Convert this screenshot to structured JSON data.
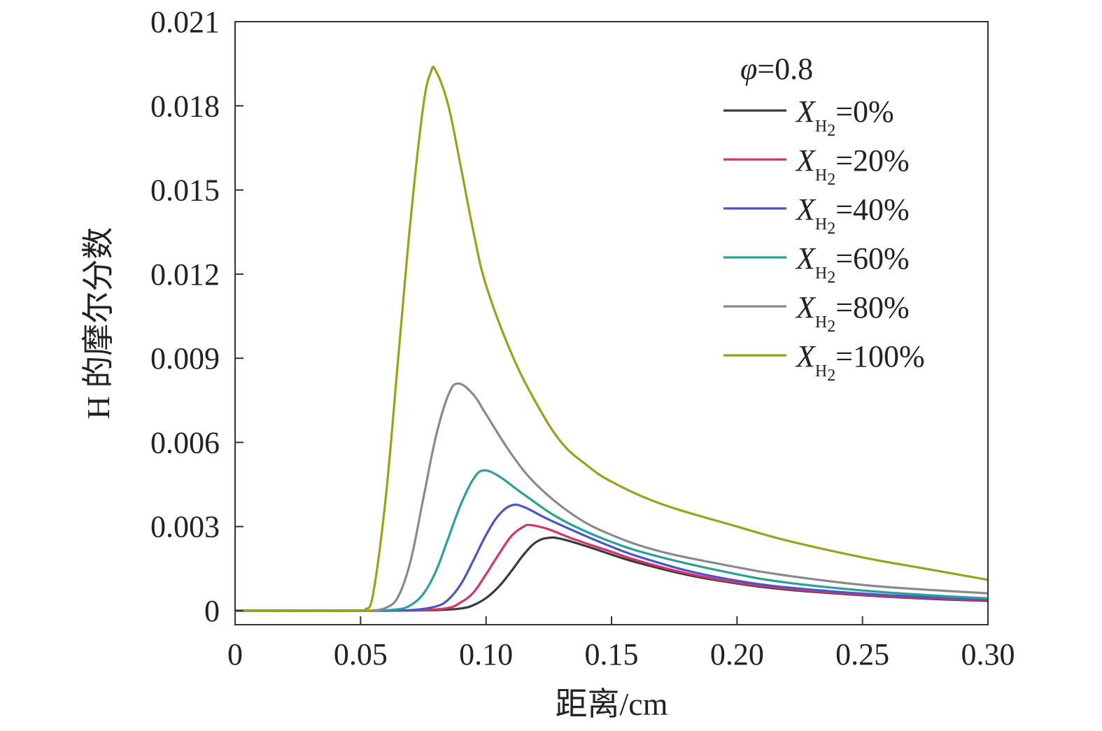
{
  "chart_data": {
    "type": "line",
    "title": "",
    "xlabel": "距离/cm",
    "ylabel": "H 的摩尔分数",
    "xlim": [
      0,
      0.3
    ],
    "ylim": [
      0,
      0.021
    ],
    "x_ticks": [
      "0",
      "0.05",
      "0.10",
      "0.15",
      "0.20",
      "0.25",
      "0.30"
    ],
    "y_ticks": [
      "0",
      "0.003",
      "0.006",
      "0.009",
      "0.012",
      "0.015",
      "0.018",
      "0.021"
    ],
    "grid": false,
    "legend_position": "top-right",
    "legend_header": {
      "symbol": "φ",
      "text": "=0.8"
    },
    "series": [
      {
        "name": "X_H2=0%",
        "label_var": "X",
        "label_sub": "H",
        "label_sub2": "2",
        "label_rest": "=0%",
        "color": "#3a3a3a",
        "points": [
          [
            0,
            0
          ],
          [
            0.05,
            0
          ],
          [
            0.06,
            0
          ],
          [
            0.08,
            2e-05
          ],
          [
            0.09,
            8e-05
          ],
          [
            0.095,
            0.0002
          ],
          [
            0.1,
            0.00045
          ],
          [
            0.105,
            0.00085
          ],
          [
            0.11,
            0.0014
          ],
          [
            0.115,
            0.002
          ],
          [
            0.12,
            0.00245
          ],
          [
            0.125,
            0.0026
          ],
          [
            0.13,
            0.00256
          ],
          [
            0.14,
            0.0023
          ],
          [
            0.15,
            0.002
          ],
          [
            0.16,
            0.00172
          ],
          [
            0.18,
            0.00128
          ],
          [
            0.2,
            0.00097
          ],
          [
            0.22,
            0.00075
          ],
          [
            0.25,
            0.00055
          ],
          [
            0.275,
            0.00043
          ],
          [
            0.3,
            0.00035
          ]
        ]
      },
      {
        "name": "X_H2=20%",
        "label_var": "X",
        "label_sub": "H",
        "label_sub2": "2",
        "label_rest": "=20%",
        "color": "#d6336c",
        "points": [
          [
            0,
            0
          ],
          [
            0.05,
            0
          ],
          [
            0.06,
            0
          ],
          [
            0.075,
            2e-05
          ],
          [
            0.085,
            0.0001
          ],
          [
            0.09,
            0.0003
          ],
          [
            0.095,
            0.00065
          ],
          [
            0.1,
            0.0013
          ],
          [
            0.105,
            0.002
          ],
          [
            0.11,
            0.00265
          ],
          [
            0.115,
            0.003
          ],
          [
            0.118,
            0.00305
          ],
          [
            0.125,
            0.0029
          ],
          [
            0.135,
            0.00255
          ],
          [
            0.15,
            0.0021
          ],
          [
            0.16,
            0.0018
          ],
          [
            0.18,
            0.00133
          ],
          [
            0.2,
            0.001
          ],
          [
            0.22,
            0.00078
          ],
          [
            0.25,
            0.00057
          ],
          [
            0.275,
            0.00045
          ],
          [
            0.3,
            0.00037
          ]
        ]
      },
      {
        "name": "X_H2=40%",
        "label_var": "X",
        "label_sub": "H",
        "label_sub2": "2",
        "label_rest": "=40%",
        "color": "#4a55c8",
        "points": [
          [
            0,
            0
          ],
          [
            0.05,
            0
          ],
          [
            0.058,
            0
          ],
          [
            0.07,
            2e-05
          ],
          [
            0.08,
            0.00015
          ],
          [
            0.085,
            0.0004
          ],
          [
            0.09,
            0.00095
          ],
          [
            0.095,
            0.0018
          ],
          [
            0.1,
            0.0027
          ],
          [
            0.105,
            0.0034
          ],
          [
            0.11,
            0.00375
          ],
          [
            0.115,
            0.0037
          ],
          [
            0.125,
            0.00325
          ],
          [
            0.14,
            0.00265
          ],
          [
            0.15,
            0.00228
          ],
          [
            0.16,
            0.00195
          ],
          [
            0.18,
            0.00143
          ],
          [
            0.2,
            0.00107
          ],
          [
            0.22,
            0.00083
          ],
          [
            0.25,
            0.00061
          ],
          [
            0.275,
            0.00049
          ],
          [
            0.3,
            0.0004
          ]
        ]
      },
      {
        "name": "X_H2=60%",
        "label_var": "X",
        "label_sub": "H",
        "label_sub2": "2",
        "label_rest": "=60%",
        "color": "#2aa198",
        "points": [
          [
            0,
            0
          ],
          [
            0.05,
            0
          ],
          [
            0.056,
            0
          ],
          [
            0.065,
            5e-05
          ],
          [
            0.07,
            0.0002
          ],
          [
            0.075,
            0.0006
          ],
          [
            0.08,
            0.0014
          ],
          [
            0.085,
            0.0026
          ],
          [
            0.09,
            0.0038
          ],
          [
            0.095,
            0.0047
          ],
          [
            0.099,
            0.005
          ],
          [
            0.105,
            0.0048
          ],
          [
            0.115,
            0.00415
          ],
          [
            0.13,
            0.00325
          ],
          [
            0.15,
            0.00245
          ],
          [
            0.17,
            0.0019
          ],
          [
            0.2,
            0.0013
          ],
          [
            0.22,
            0.001
          ],
          [
            0.25,
            0.00072
          ],
          [
            0.275,
            0.00056
          ],
          [
            0.3,
            0.00044
          ]
        ]
      },
      {
        "name": "X_H2=80%",
        "label_var": "X",
        "label_sub": "H",
        "label_sub2": "2",
        "label_rest": "=80%",
        "color": "#8a8a8a",
        "points": [
          [
            0,
            0
          ],
          [
            0.05,
            0
          ],
          [
            0.054,
            0
          ],
          [
            0.06,
            0.0001
          ],
          [
            0.065,
            0.0005
          ],
          [
            0.07,
            0.0018
          ],
          [
            0.075,
            0.004
          ],
          [
            0.08,
            0.0062
          ],
          [
            0.085,
            0.0077
          ],
          [
            0.089,
            0.0081
          ],
          [
            0.095,
            0.0077
          ],
          [
            0.1,
            0.007
          ],
          [
            0.11,
            0.0056
          ],
          [
            0.12,
            0.0045
          ],
          [
            0.135,
            0.0034
          ],
          [
            0.15,
            0.0027
          ],
          [
            0.17,
            0.0021
          ],
          [
            0.2,
            0.00155
          ],
          [
            0.22,
            0.00125
          ],
          [
            0.25,
            0.00092
          ],
          [
            0.275,
            0.00075
          ],
          [
            0.3,
            0.00062
          ]
        ]
      },
      {
        "name": "X_H2=100%",
        "label_var": "X",
        "label_sub": "H",
        "label_sub2": "2",
        "label_rest": "=100%",
        "color": "#9aa21a",
        "points": [
          [
            0,
            0
          ],
          [
            0.05,
            0
          ],
          [
            0.052,
            5e-05
          ],
          [
            0.055,
            0.0006
          ],
          [
            0.06,
            0.004
          ],
          [
            0.065,
            0.009
          ],
          [
            0.07,
            0.014
          ],
          [
            0.075,
            0.018
          ],
          [
            0.078,
            0.0192
          ],
          [
            0.08,
            0.01925
          ],
          [
            0.085,
            0.018
          ],
          [
            0.09,
            0.0158
          ],
          [
            0.095,
            0.0135
          ],
          [
            0.1,
            0.0116
          ],
          [
            0.11,
            0.0092
          ],
          [
            0.12,
            0.0074
          ],
          [
            0.13,
            0.006
          ],
          [
            0.14,
            0.0052
          ],
          [
            0.15,
            0.0046
          ],
          [
            0.17,
            0.0038
          ],
          [
            0.2,
            0.003
          ],
          [
            0.22,
            0.0025
          ],
          [
            0.25,
            0.0019
          ],
          [
            0.275,
            0.0015
          ],
          [
            0.3,
            0.0011
          ]
        ]
      }
    ]
  }
}
